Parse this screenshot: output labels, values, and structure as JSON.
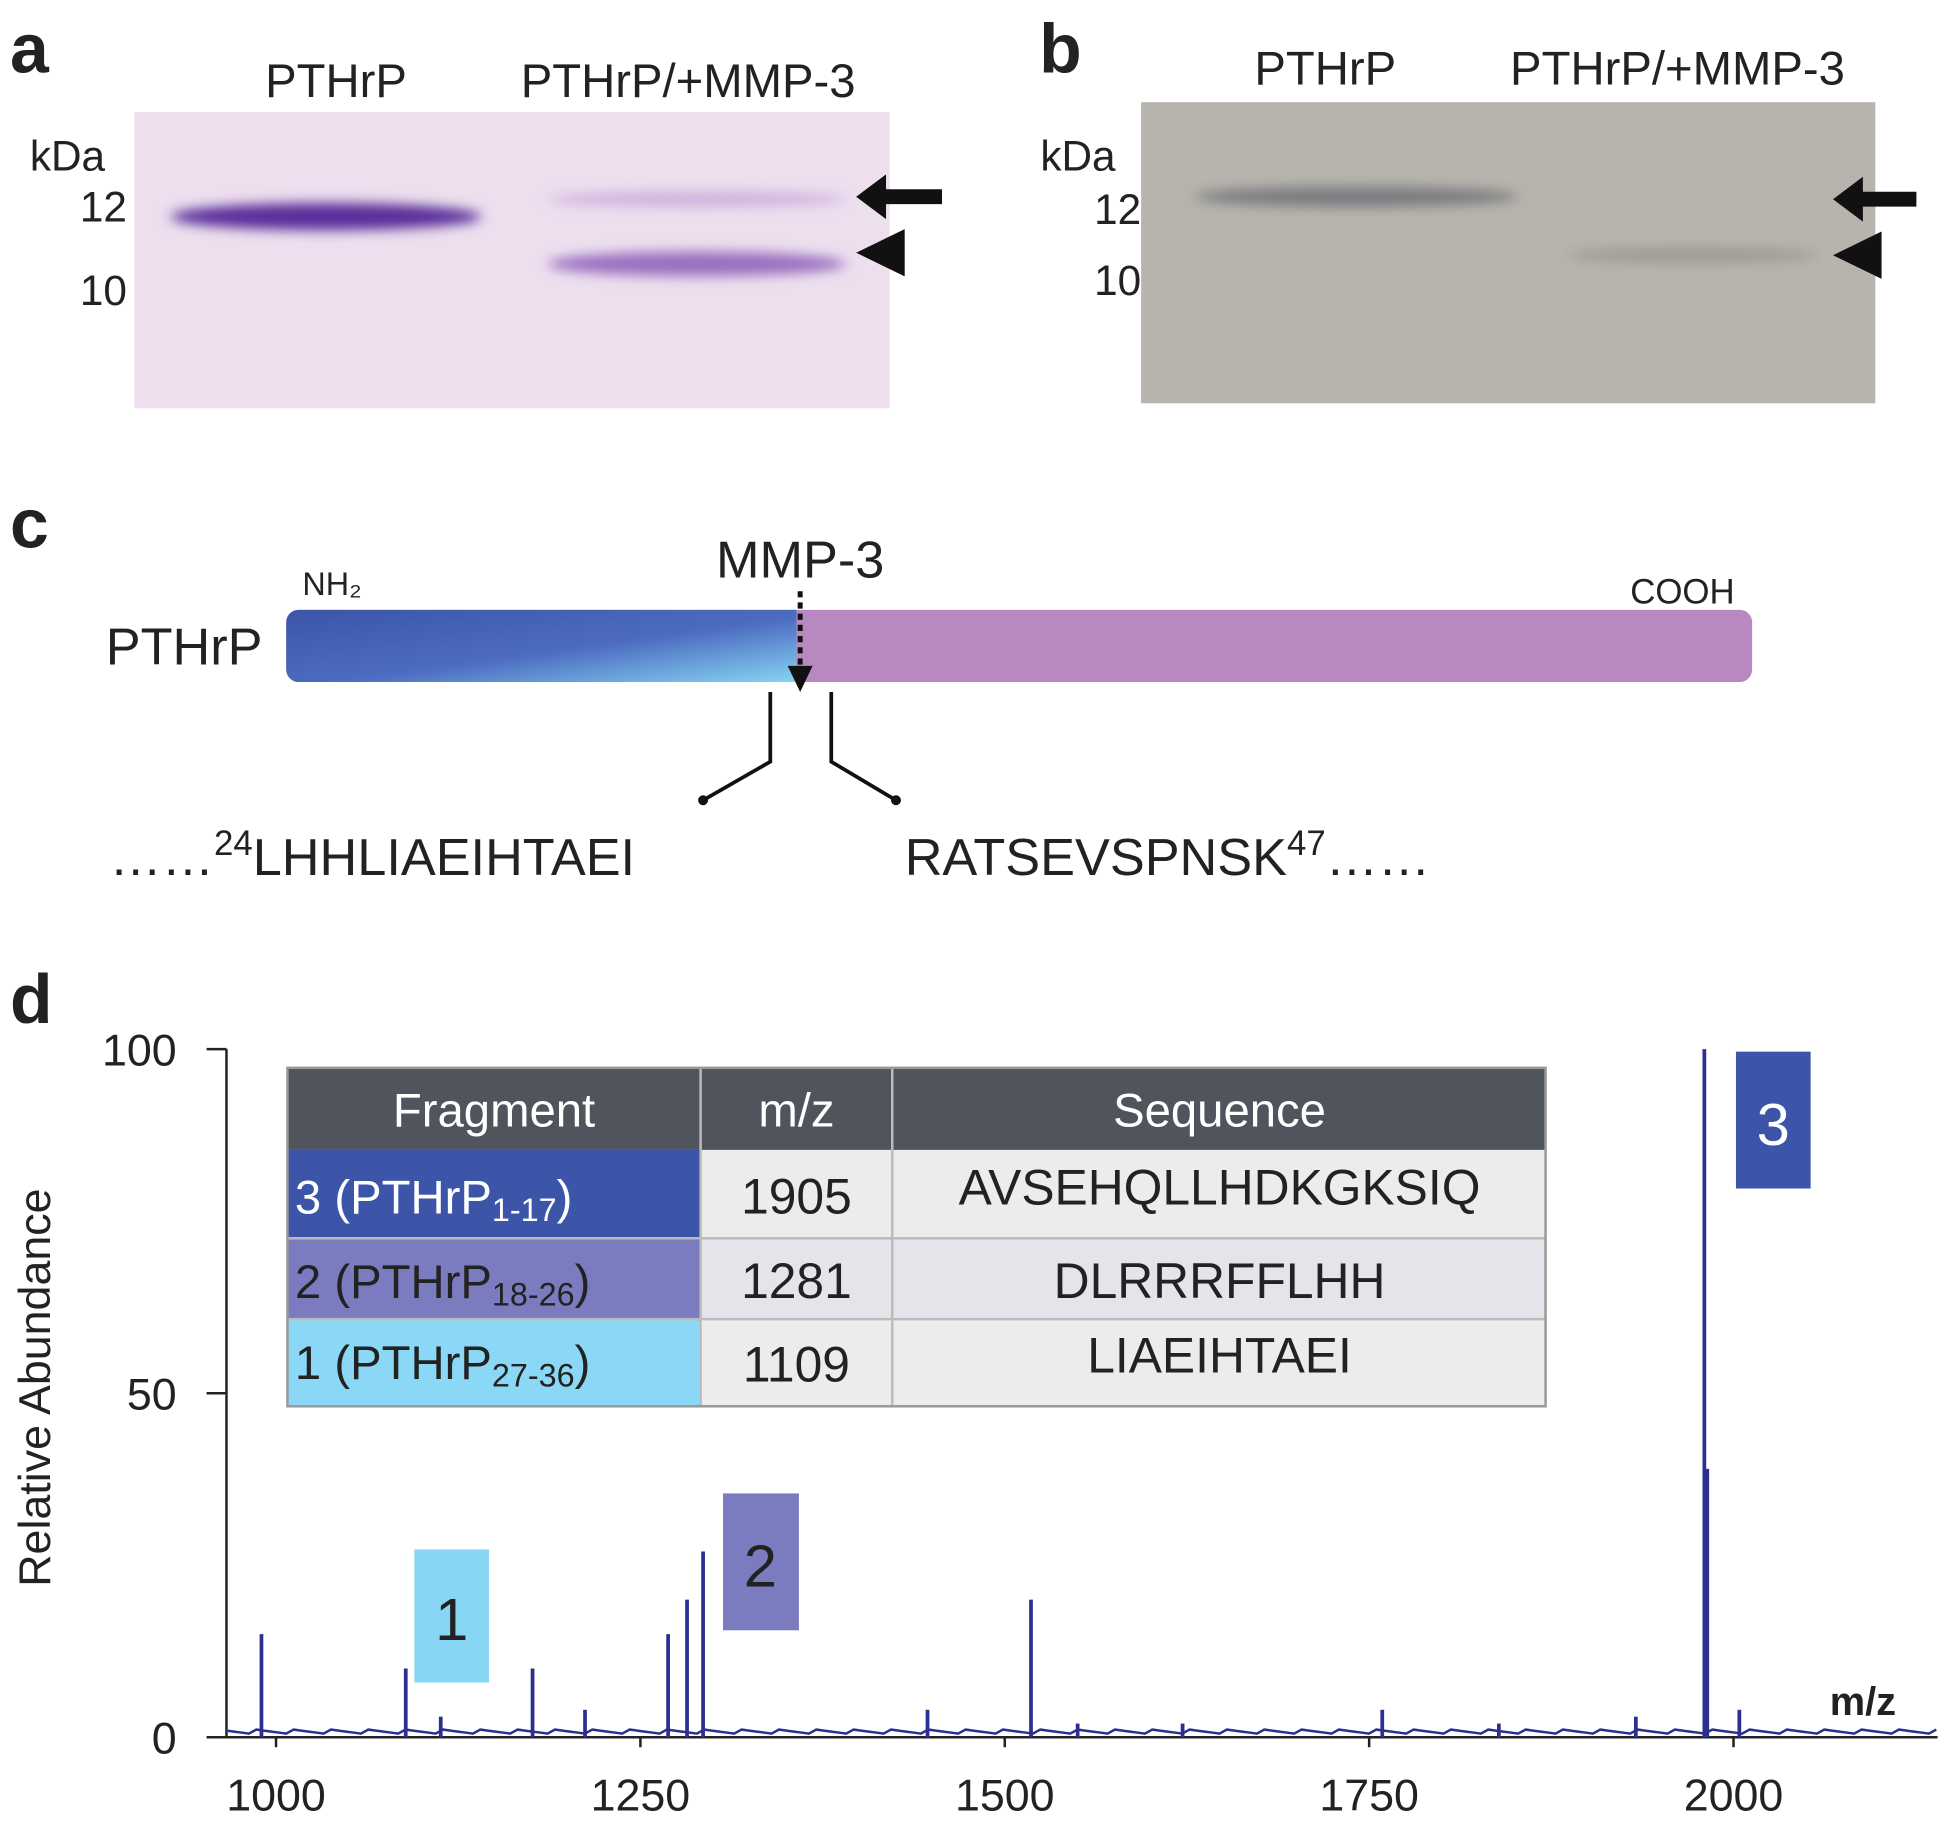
{
  "panels": {
    "a": {
      "letter": "a",
      "lanes": [
        "PTHrP",
        "PTHrP/+MMP-3"
      ],
      "unit": "kDa",
      "markers": [
        "12",
        "10"
      ]
    },
    "b": {
      "letter": "b",
      "lanes": [
        "PTHrP",
        "PTHrP/+MMP-3"
      ],
      "unit": "kDa",
      "markers": [
        "12",
        "10"
      ]
    },
    "c": {
      "letter": "c",
      "protein": "PTHrP",
      "n_term": "NH₂",
      "c_term": "COOH",
      "enzyme": "MMP-3",
      "left_seq": {
        "prefix": "……",
        "position": "24",
        "sequence": "LHHLIAEIHTAEI"
      },
      "right_seq": {
        "sequence": "RATSEVSPNSK",
        "position": "47",
        "suffix": "……"
      }
    },
    "d": {
      "letter": "d",
      "table": {
        "header": [
          "Fragment",
          "m/z",
          "Sequence"
        ],
        "rows": [
          [
            {
              "name": "3 (PTHrP",
              "range": "1-17",
              "close": ")"
            },
            "1905",
            "AVSEHQLLHDKGKSIQ"
          ],
          [
            {
              "name": "2 (PTHrP",
              "range": "18-26",
              "close": ")"
            },
            "1281",
            "DLRRRFFLHH"
          ],
          [
            {
              "name": "1 (PTHrP",
              "range": "27-36",
              "close": ")"
            },
            "1109",
            "LIAEIHTAEI"
          ]
        ]
      },
      "peak_labels": [
        "1",
        "2",
        "3"
      ]
    }
  },
  "chart_data": {
    "type": "spectrum",
    "ylabel": "Relative Abundance",
    "xlabel": "m/z",
    "color": "#2b2f8f",
    "x": [
      990,
      1089,
      1113,
      1176,
      1212,
      1269,
      1282,
      1293,
      1447,
      1518,
      1550,
      1622,
      1759,
      1839,
      1933,
      1980,
      1982,
      2004
    ],
    "values": [
      15,
      10,
      3,
      10,
      4,
      15,
      20,
      27,
      4,
      20,
      2,
      2,
      4,
      2,
      3,
      100,
      39,
      4
    ],
    "xlim": [
      966,
      2140
    ],
    "ylim": [
      0,
      100
    ],
    "xticks": [
      1000,
      1250,
      1500,
      1750,
      2000
    ],
    "yticks": [
      0,
      50,
      100
    ]
  }
}
